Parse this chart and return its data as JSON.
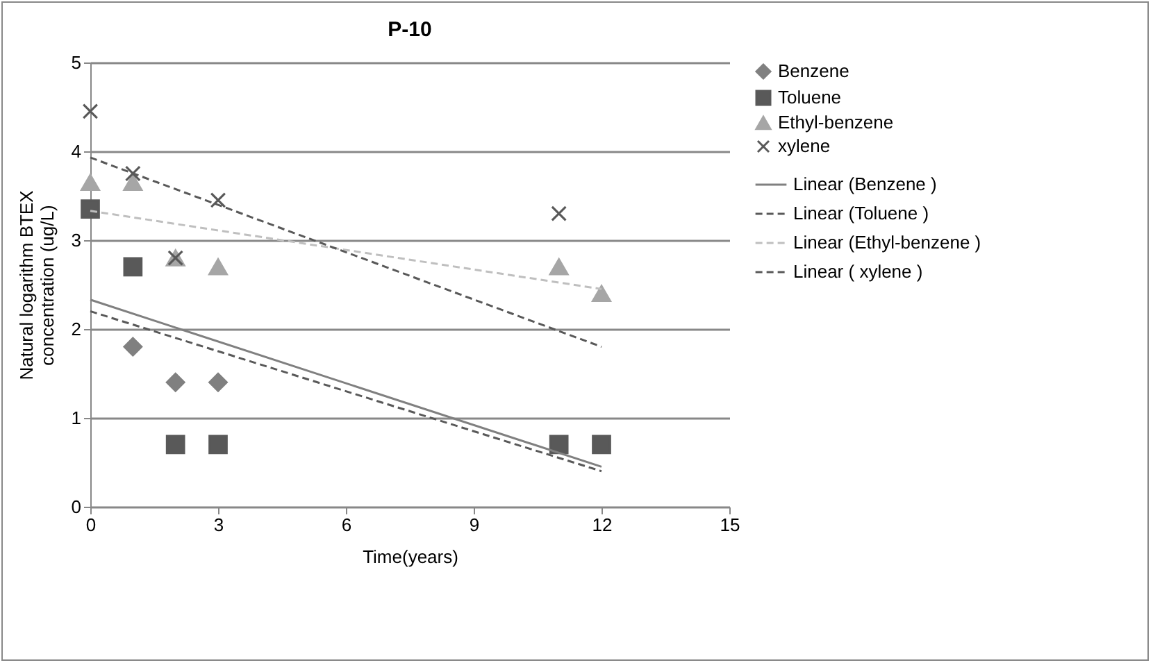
{
  "chart_data": {
    "type": "scatter",
    "title": "P-10",
    "xlabel": "Time(years)",
    "ylabel": "Natural logarithm BTEX concentration (ug/L)",
    "xlim": [
      0,
      15
    ],
    "xticks": [
      0,
      3,
      6,
      9,
      12,
      15
    ],
    "ylim": [
      0,
      5
    ],
    "yticks": [
      0,
      1,
      2,
      3,
      4,
      5
    ],
    "grid": "y",
    "legend": "right",
    "series": [
      {
        "name": "Benzene",
        "color": "#808080",
        "marker": "diamond",
        "x": [
          1,
          2,
          3
        ],
        "values": [
          1.8,
          1.4,
          1.4
        ]
      },
      {
        "name": "Toluene",
        "color": "#595959",
        "marker": "square",
        "x": [
          0,
          1,
          2,
          3,
          11,
          12
        ],
        "values": [
          3.35,
          2.7,
          0.7,
          0.7,
          0.7,
          0.7
        ]
      },
      {
        "name": "Ethyl-benzene",
        "color": "#a6a6a6",
        "marker": "triangle",
        "x": [
          0,
          1,
          2,
          3,
          11,
          12
        ],
        "values": [
          3.65,
          3.65,
          2.8,
          2.7,
          2.7,
          2.4
        ]
      },
      {
        "name": " xylene",
        "color": "#595959",
        "marker": "cross",
        "x": [
          0,
          1,
          2,
          3,
          11
        ],
        "values": [
          4.45,
          3.75,
          2.8,
          3.45,
          3.3
        ]
      },
      {
        "name": "Linear (Benzene )",
        "type": "line",
        "color": "#808080",
        "line_style": "solid",
        "x": [
          0,
          12
        ],
        "values": [
          2.33,
          0.45
        ]
      },
      {
        "name": "Linear (Toluene )",
        "type": "line",
        "color": "#595959",
        "line_style": "dashed",
        "x": [
          0,
          12
        ],
        "values": [
          2.2,
          0.4
        ]
      },
      {
        "name": "Linear (Ethyl-benzene )",
        "type": "line",
        "color": "#bfbfbf",
        "line_style": "dashed",
        "x": [
          0,
          12
        ],
        "values": [
          3.33,
          2.45
        ]
      },
      {
        "name": "Linear ( xylene )",
        "type": "line",
        "color": "#595959",
        "line_style": "dashed",
        "x": [
          0,
          12
        ],
        "values": [
          3.93,
          1.8
        ]
      }
    ]
  }
}
